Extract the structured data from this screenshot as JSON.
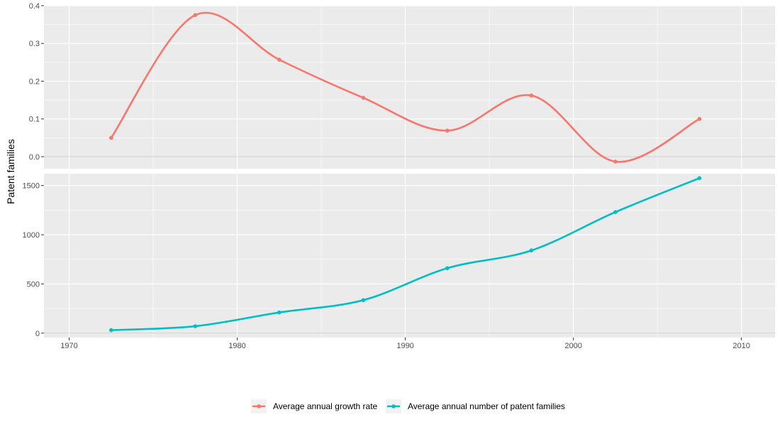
{
  "chart_data": {
    "type": "line",
    "ylabel": "Patent families",
    "xlabel": "",
    "x_ticks": [
      1970,
      1980,
      1990,
      2000,
      2010
    ],
    "xlim": [
      1968.5,
      2012
    ],
    "legend_position": "bottom",
    "smoothed": true,
    "grid": true,
    "panels": [
      {
        "series_name": "Average annual growth rate",
        "color": "#F8766D",
        "ylim": [
          -0.032,
          0.4
        ],
        "y_ticks": [
          0.0,
          0.1,
          0.2,
          0.3,
          0.4
        ],
        "y_tick_labels": [
          "0.0",
          "0.1",
          "0.2",
          "0.3",
          "0.4"
        ]
      },
      {
        "series_name": "Average annual number of patent families",
        "color": "#00BFC4",
        "ylim": [
          -45,
          1620
        ],
        "y_ticks": [
          0,
          500,
          1000,
          1500
        ],
        "y_tick_labels": [
          "0",
          "500",
          "1000",
          "1500"
        ]
      }
    ],
    "x": [
      1972.5,
      1977.5,
      1982.5,
      1987.5,
      1992.5,
      1997.5,
      2002.5,
      2007.5
    ],
    "series": [
      {
        "name": "Average annual growth rate",
        "color": "#F8766D",
        "values": [
          0.05,
          0.375,
          0.257,
          0.156,
          0.069,
          0.162,
          -0.013,
          0.1
        ]
      },
      {
        "name": "Average annual number of patent families",
        "color": "#00BFC4",
        "values": [
          30,
          70,
          210,
          335,
          660,
          840,
          1230,
          1575
        ]
      }
    ]
  }
}
